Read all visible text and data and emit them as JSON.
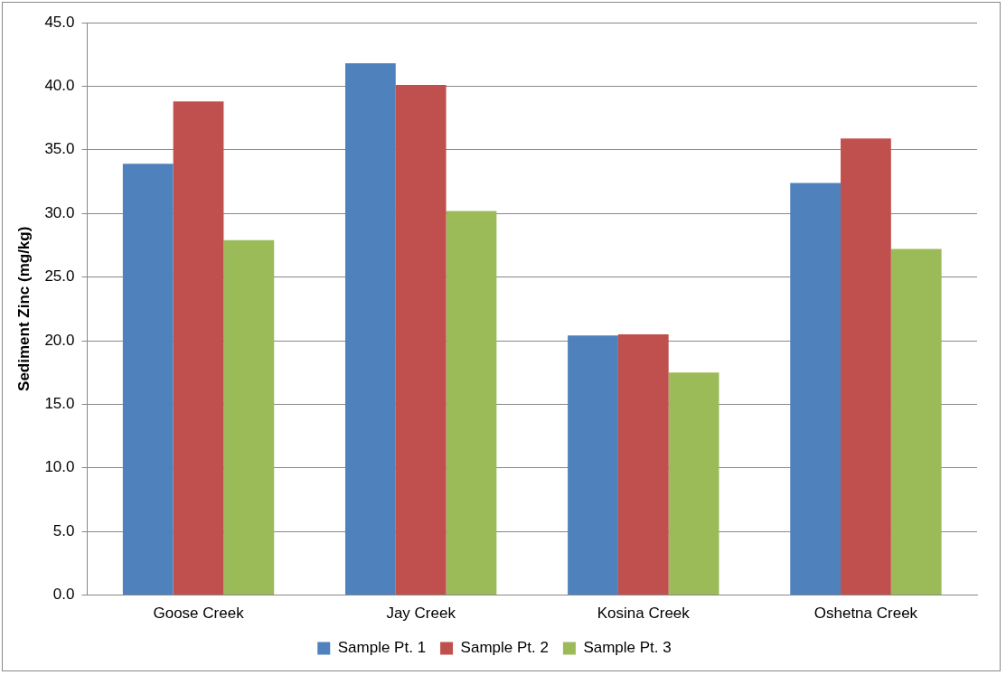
{
  "chart_data": {
    "type": "bar",
    "ylabel": "Sediment Zinc (mg/kg)",
    "categories": [
      "Goose Creek",
      "Jay Creek",
      "Kosina Creek",
      "Oshetna Creek"
    ],
    "series": [
      {
        "name": "Sample Pt. 1",
        "color": "#4f81bd",
        "values": [
          33.9,
          41.8,
          20.4,
          32.4
        ]
      },
      {
        "name": "Sample Pt. 2",
        "color": "#c0504d",
        "values": [
          38.8,
          40.1,
          20.5,
          35.9
        ]
      },
      {
        "name": "Sample Pt. 3",
        "color": "#9bbb59",
        "values": [
          27.9,
          30.2,
          17.5,
          27.2
        ]
      }
    ],
    "ylim": [
      0,
      45
    ],
    "yticks": [
      {
        "value": 0,
        "label": "0.0"
      },
      {
        "value": 5,
        "label": "5.0"
      },
      {
        "value": 10,
        "label": "10.0"
      },
      {
        "value": 15,
        "label": "15.0"
      },
      {
        "value": 20,
        "label": "20.0"
      },
      {
        "value": 25,
        "label": "25.0"
      },
      {
        "value": 30,
        "label": "30.0"
      },
      {
        "value": 35,
        "label": "35.0"
      },
      {
        "value": 40,
        "label": "40.0"
      },
      {
        "value": 45,
        "label": "45.0"
      }
    ],
    "grid": "y",
    "legend": "bottom"
  }
}
